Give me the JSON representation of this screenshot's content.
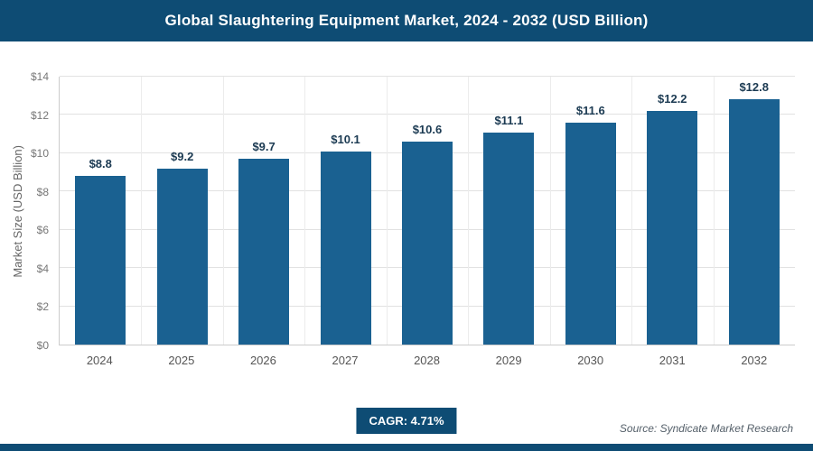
{
  "header": {
    "title": "Global Slaughtering Equipment Market, 2024 - 2032 (USD Billion)"
  },
  "chart_data": {
    "type": "bar",
    "title": "Global Slaughtering Equipment Market, 2024 - 2032 (USD Billion)",
    "categories": [
      "2024",
      "2025",
      "2026",
      "2027",
      "2028",
      "2029",
      "2030",
      "2031",
      "2032"
    ],
    "values": [
      8.8,
      9.2,
      9.7,
      10.1,
      10.6,
      11.1,
      11.6,
      12.2,
      12.8
    ],
    "bar_labels": [
      "$8.8",
      "$9.2",
      "$9.7",
      "$10.1",
      "$10.6",
      "$11.1",
      "$11.6",
      "$12.2",
      "$12.8"
    ],
    "xlabel": "",
    "ylabel": "Market Size (USD Billion)",
    "ylim": [
      0,
      14
    ],
    "yticks": [
      0,
      2,
      4,
      6,
      8,
      10,
      12,
      14
    ],
    "ytick_labels": [
      "$0",
      "$2",
      "$4",
      "$6",
      "$8",
      "$10",
      "$12",
      "$14"
    ],
    "grid": true,
    "legend": false,
    "bar_color": "#1a6191"
  },
  "footer": {
    "cagr_label": "CAGR: 4.71%",
    "source": "Source: Syndicate Market Research"
  },
  "colors": {
    "header_bg": "#0e4c74",
    "bar": "#1a6191",
    "gridline": "#e2e2e2",
    "axis": "#cccccc",
    "badge_bg": "#0e4c74"
  }
}
